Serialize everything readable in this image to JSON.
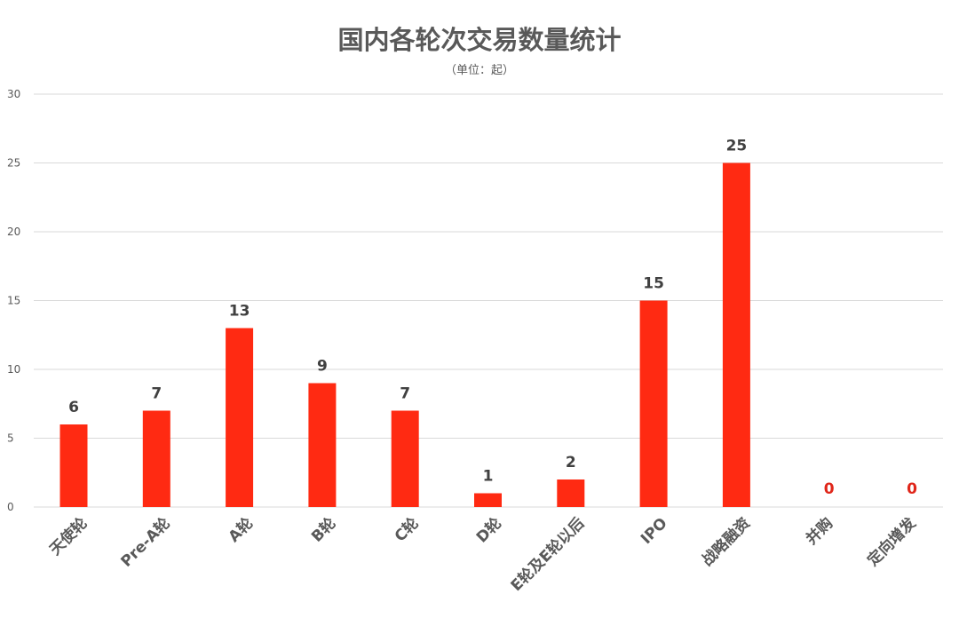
{
  "chart_data": {
    "type": "bar",
    "title": "国内各轮次交易数量统计",
    "subtitle": "（单位：起）",
    "categories": [
      "天使轮",
      "Pre-A轮",
      "A轮",
      "B轮",
      "C轮",
      "D轮",
      "E轮及E轮以后",
      "IPO",
      "战略融资",
      "并购",
      "定向增发"
    ],
    "values": [
      6,
      7,
      13,
      9,
      7,
      1,
      2,
      15,
      25,
      0,
      0
    ],
    "ylim": [
      0,
      30
    ],
    "yticks": [
      0,
      5,
      10,
      15,
      20,
      25,
      30
    ],
    "grid": true,
    "legend": "none",
    "colors": {
      "bar": "#ff2a12",
      "value_label": "#404040",
      "zero_label": "#e0261a",
      "grid": "#d9d9d9"
    }
  }
}
